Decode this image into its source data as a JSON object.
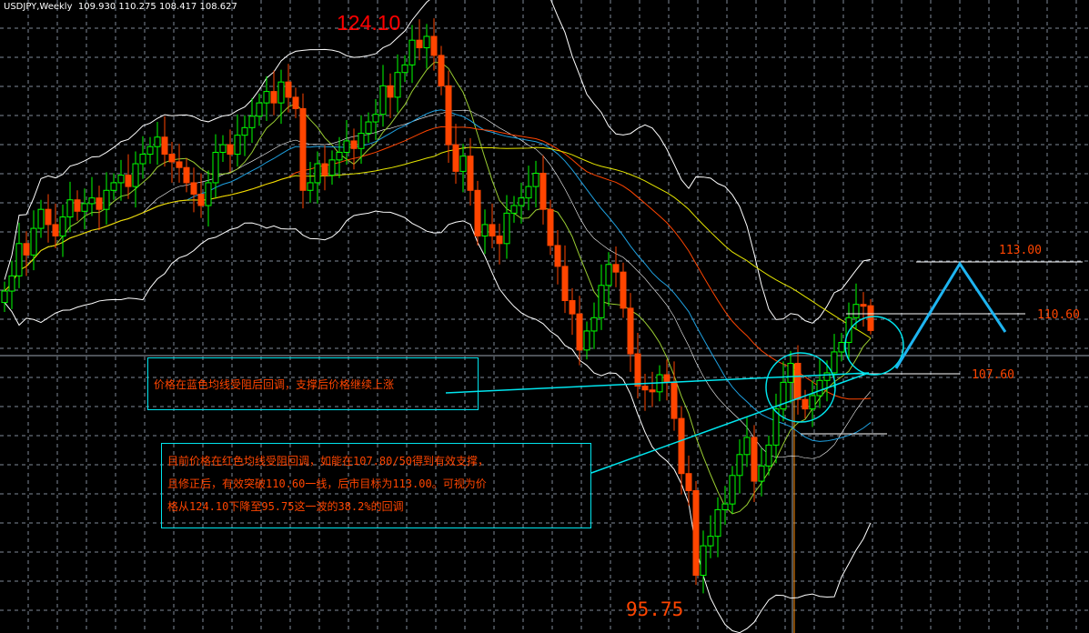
{
  "header": {
    "symbol": "USDJPY,Weekly",
    "ohlc": "109.930 110.275 108.417 108.627"
  },
  "colors": {
    "background": "#000000",
    "grid": "#7f8a99",
    "bull": "#00ff00",
    "bear": "#ff4500",
    "ma_fast": "#9acd32",
    "ma_mid": "#1ea0e0",
    "ma_slow": "#ff4500",
    "ma_long": "#e5e500",
    "bands": "#ffffff",
    "annotation": "#00e5ee"
  },
  "annotations": {
    "high_label": "124.10",
    "low_label": "95.75",
    "level_113": "113.00",
    "level_110": "110.60",
    "level_107": "107.60",
    "note1": "价格在蓝色均线受阻后回调，支撑后价格继续上涨",
    "note2_line1": "目前价格在红色均线受阻回调，如能在107.80/50得到有效支撑，",
    "note2_line2": "且修正后，有效突破110.60一线，后市目标为113.00。可视为价",
    "note2_line3": "格从124.10下降至95.75这一波的38.2%的回调"
  },
  "chart_data": {
    "type": "candlestick",
    "title": "USDJPY,Weekly",
    "ylim": [
      94,
      127
    ],
    "grid": true,
    "last_bar": {
      "open": 109.93,
      "high": 110.275,
      "low": 108.417,
      "close": 108.627
    },
    "close": [
      110.7,
      111.5,
      113.2,
      112.6,
      114.0,
      115.0,
      114.2,
      113.6,
      114.6,
      115.5,
      114.9,
      115.3,
      115.6,
      115.0,
      116.0,
      116.4,
      116.8,
      116.2,
      117.4,
      117.9,
      118.3,
      118.8,
      117.9,
      117.5,
      117.2,
      116.4,
      115.8,
      115.2,
      116.4,
      118.0,
      118.4,
      117.9,
      118.9,
      119.3,
      119.9,
      120.6,
      121.2,
      120.6,
      121.7,
      120.9,
      120.3,
      116.0,
      116.4,
      117.4,
      116.8,
      117.6,
      118.0,
      118.6,
      118.2,
      119.0,
      119.6,
      120.0,
      121.5,
      120.9,
      122.2,
      122.6,
      123.9,
      123.5,
      124.1,
      123.1,
      121.5,
      118.4,
      117.0,
      117.8,
      116.0,
      113.6,
      114.2,
      113.6,
      113.2,
      114.8,
      115.2,
      115.6,
      116.2,
      116.9,
      115.0,
      113.1,
      112.0,
      110.2,
      109.5,
      107.6,
      108.6,
      109.3,
      111.0,
      112.1,
      111.7,
      109.8,
      107.4,
      105.7,
      105.5,
      105.4,
      106.3,
      105.9,
      104.0,
      101.1,
      100.2,
      95.75,
      97.3,
      97.8,
      99.2,
      99.5,
      101.0,
      102.1,
      103.0,
      100.7,
      101.5,
      102.6,
      104.5,
      105.9,
      106.9,
      105.0,
      104.5,
      105.2,
      106.0,
      106.4,
      107.5,
      108.0,
      109.3,
      110.0,
      109.93,
      108.627
    ],
    "levels": [
      113.0,
      110.6,
      107.6
    ],
    "projection": [
      107.6,
      113.0,
      110.0
    ]
  }
}
